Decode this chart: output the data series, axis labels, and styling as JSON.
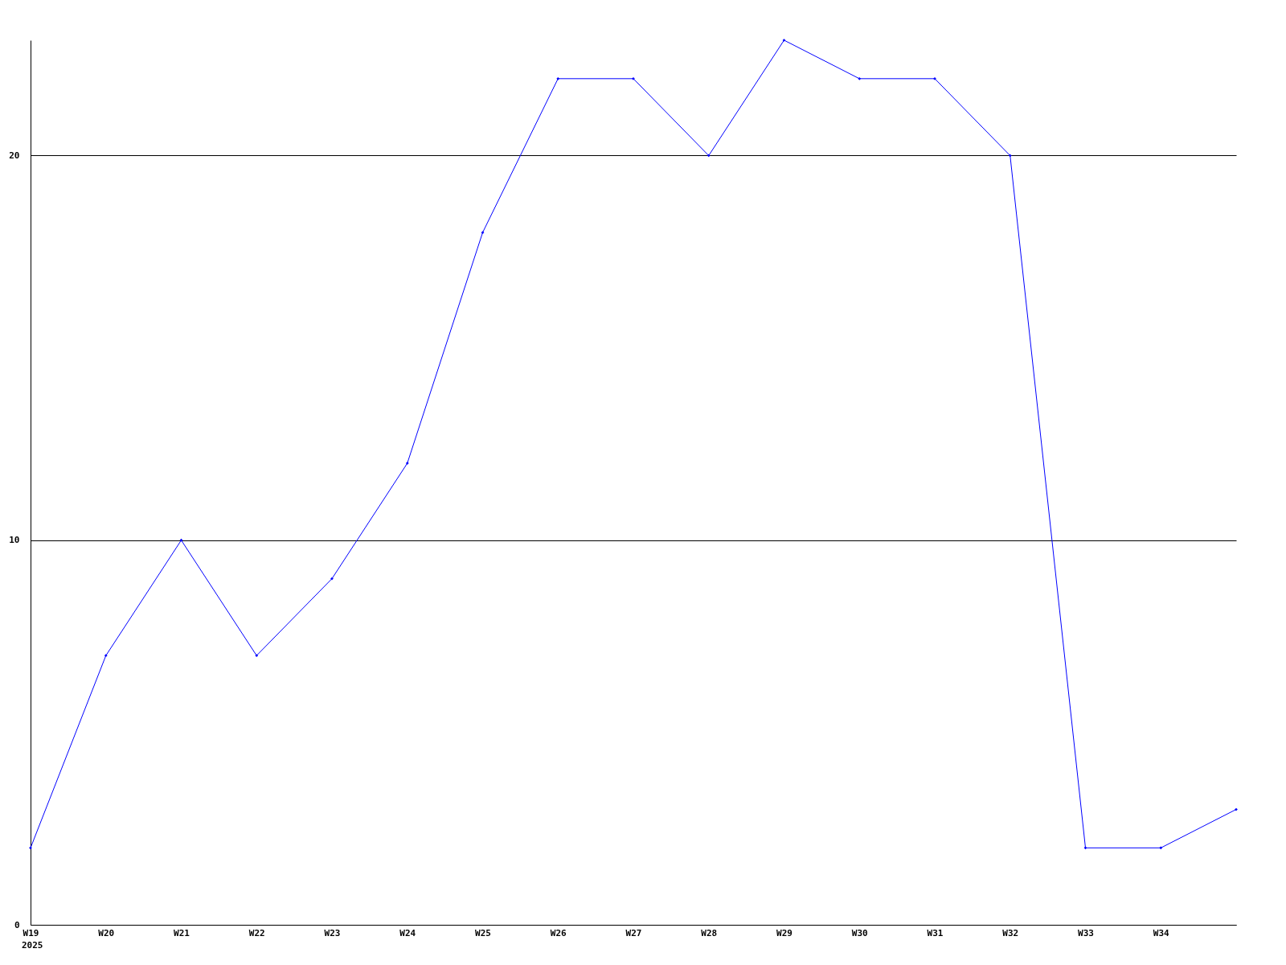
{
  "chart_data": {
    "type": "line",
    "categories": [
      "W19",
      "W20",
      "W21",
      "W22",
      "W23",
      "W24",
      "W25",
      "W26",
      "W27",
      "W28",
      "W29",
      "W30",
      "W31",
      "W32",
      "W33",
      "W34",
      null
    ],
    "series": [
      {
        "color": "#0000ff",
        "values": [
          2,
          7,
          10,
          7,
          9,
          12,
          18,
          22,
          22,
          20,
          23,
          22,
          22,
          20,
          2,
          2,
          3
        ]
      }
    ],
    "ylim": [
      0,
      23
    ],
    "yticks": [
      0,
      10,
      20
    ],
    "annotations": [
      "2025"
    ],
    "grid": "y",
    "marker": "diamond",
    "line_style": "solid"
  }
}
